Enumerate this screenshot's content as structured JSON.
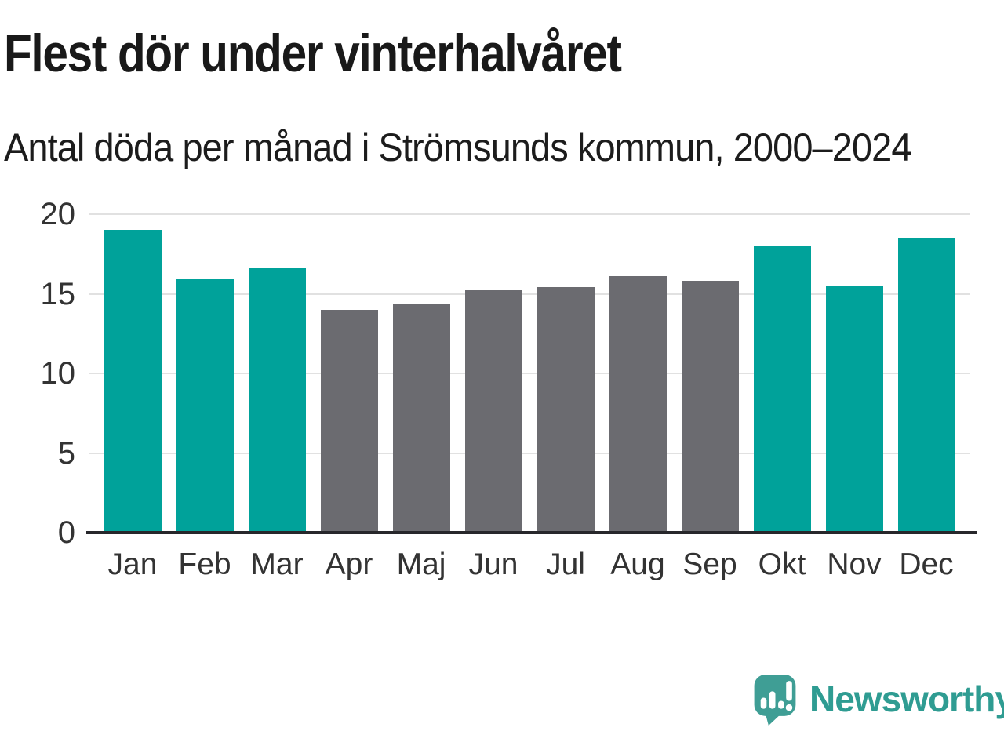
{
  "header": {
    "title": "Flest dör under vinterhalvåret",
    "subtitle": "Antal döda per månad i Strömsunds kommun, 2000–2024"
  },
  "chart_data": {
    "type": "bar",
    "title": "Flest dör under vinterhalvåret",
    "subtitle": "Antal döda per månad i Strömsunds kommun, 2000–2024",
    "categories": [
      "Jan",
      "Feb",
      "Mar",
      "Apr",
      "Maj",
      "Jun",
      "Jul",
      "Aug",
      "Sep",
      "Okt",
      "Nov",
      "Dec"
    ],
    "values": [
      19.0,
      15.9,
      16.6,
      14.0,
      14.4,
      15.2,
      15.4,
      16.1,
      15.8,
      18.0,
      15.5,
      18.5
    ],
    "bar_colors": [
      "#00a29a",
      "#00a29a",
      "#00a29a",
      "#6b6b70",
      "#6b6b70",
      "#6b6b70",
      "#6b6b70",
      "#6b6b70",
      "#6b6b70",
      "#00a29a",
      "#00a29a",
      "#00a29a"
    ],
    "highlight_color": "#00a29a",
    "muted_color": "#6b6b70",
    "grid": true,
    "grid_color": "#e1e1e1",
    "axis_line_color": "#27272b",
    "tick_color": "#333333",
    "xlabel": "",
    "ylabel": "",
    "ylim": [
      0,
      20
    ],
    "yticks": [
      0,
      5,
      10,
      15,
      20
    ],
    "legend": "none"
  },
  "footer": {
    "brand": "Newsworthy",
    "brand_color": "#2f9c92",
    "logo_color": "#3f9e95"
  }
}
